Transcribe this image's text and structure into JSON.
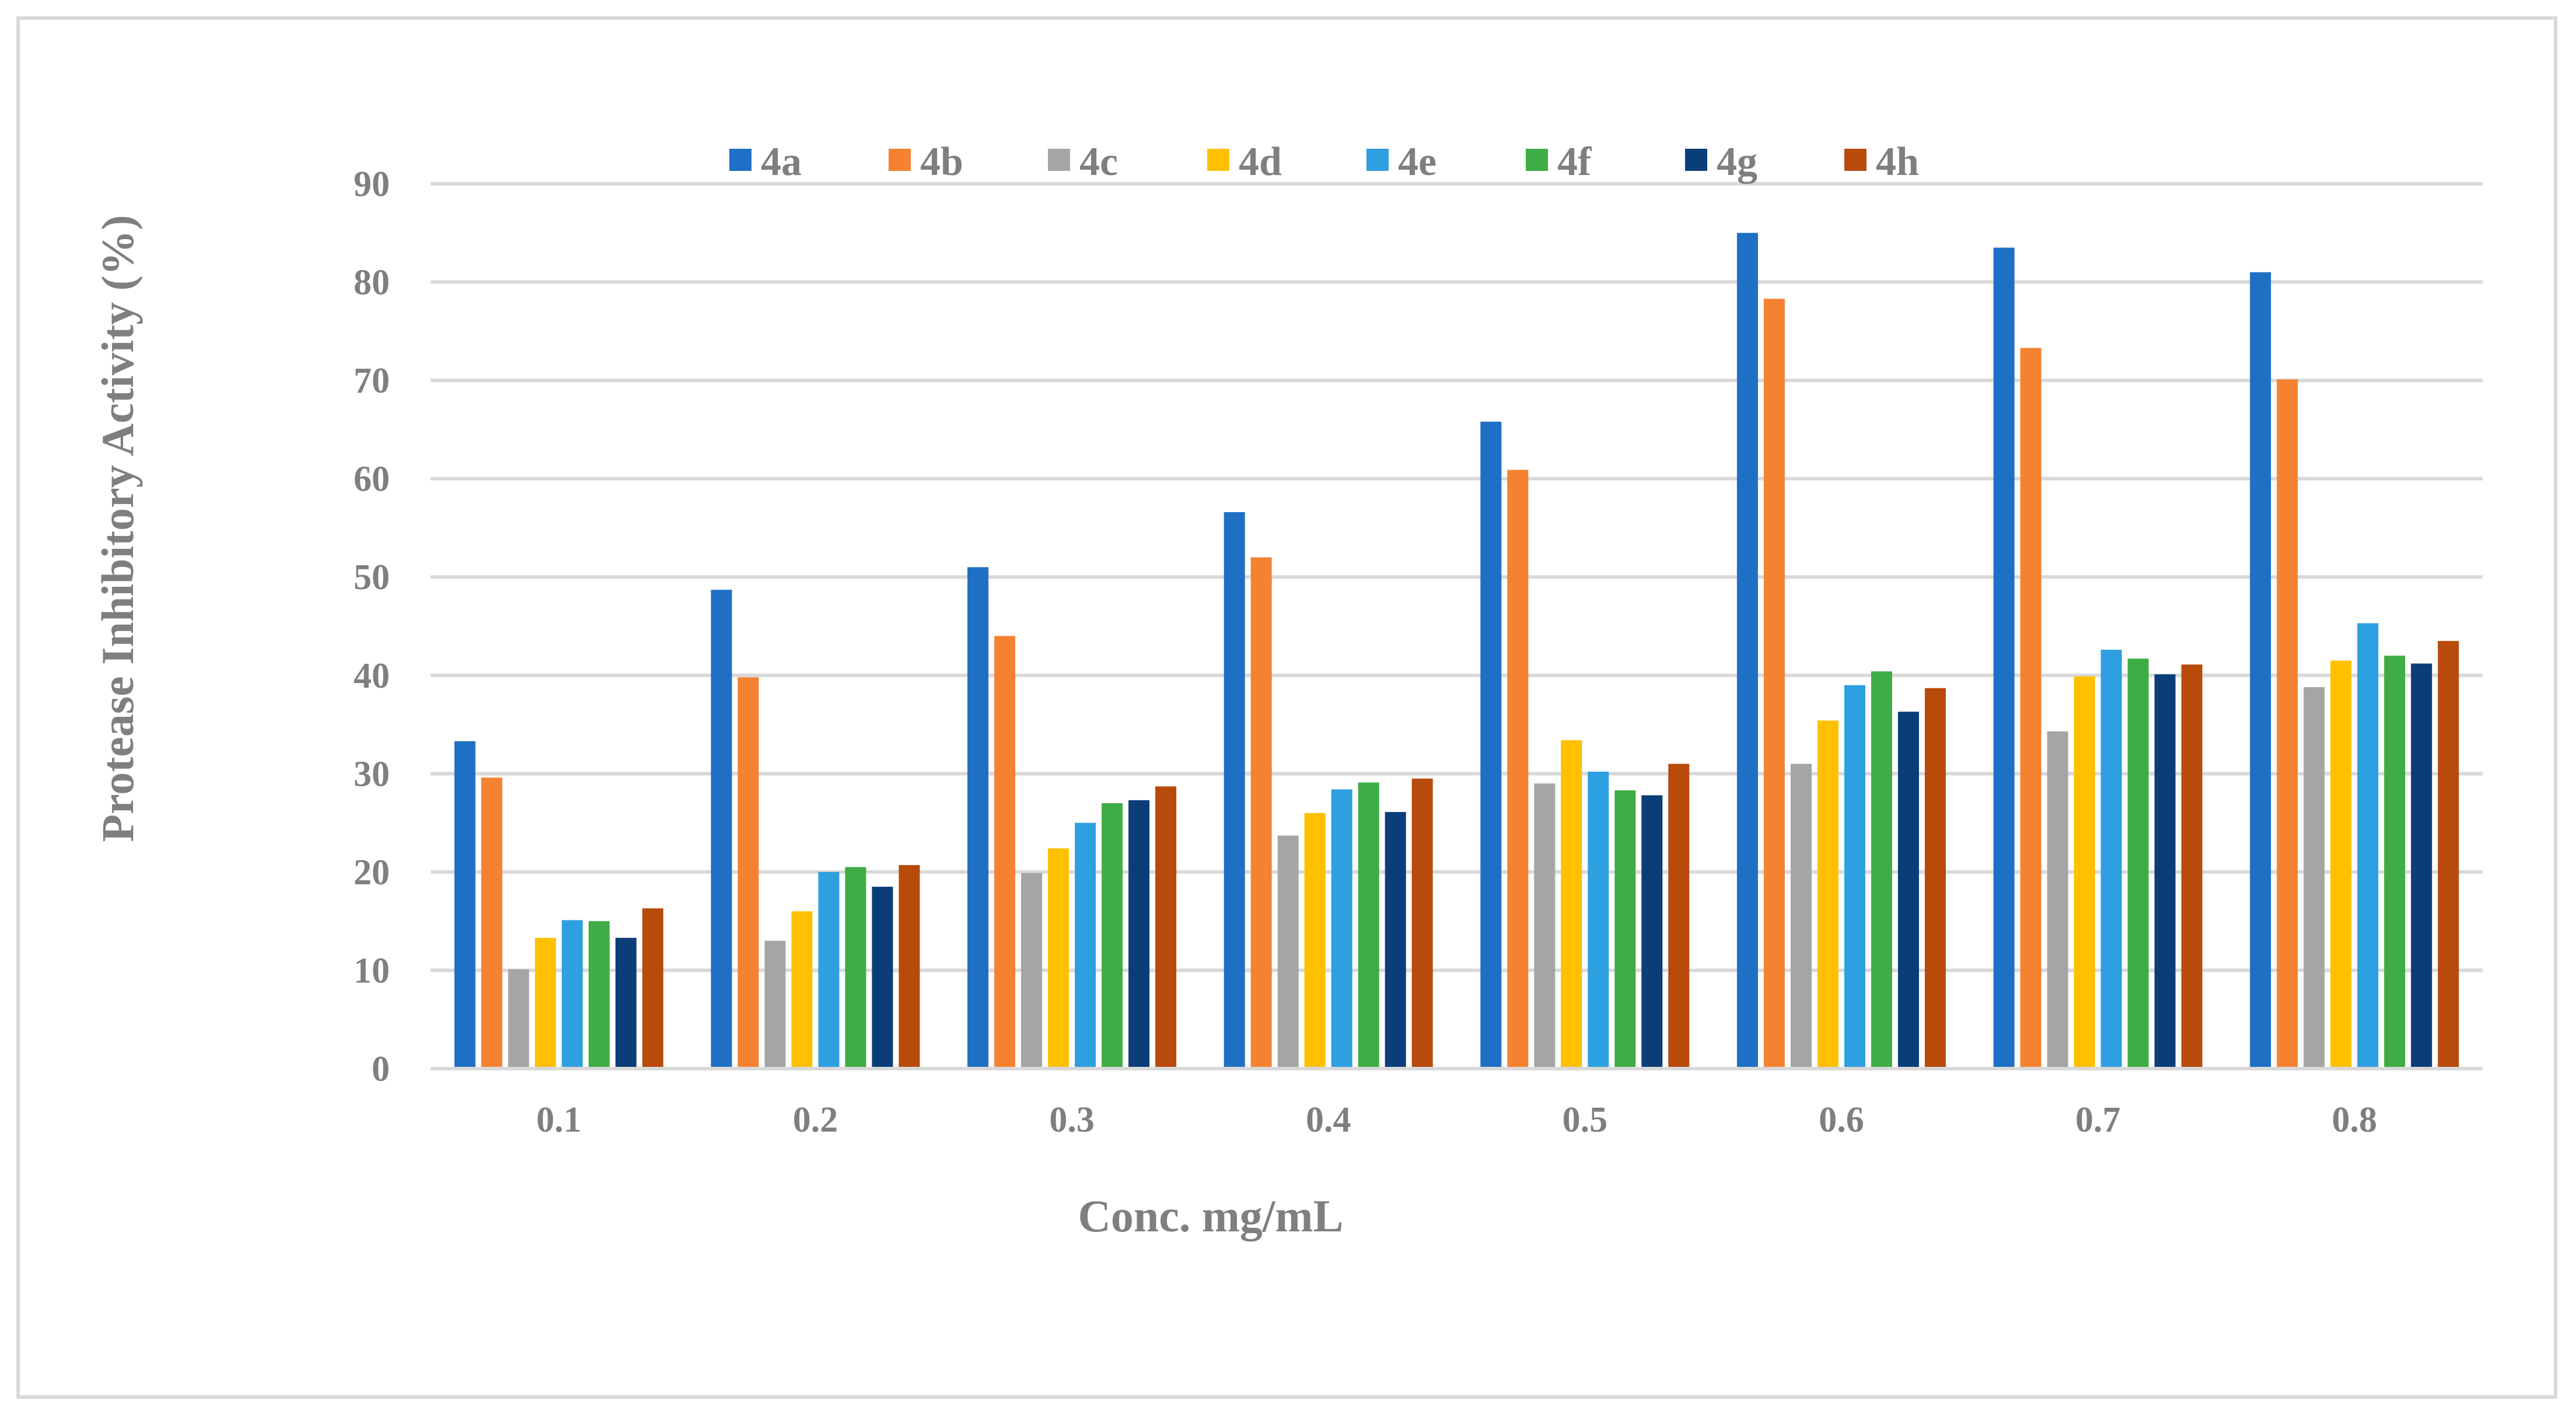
{
  "chart_data": {
    "type": "bar",
    "title": "",
    "xlabel": "Conc. mg/mL",
    "ylabel": "Protease Inhibitory Activity (%)",
    "ylim": [
      0,
      90
    ],
    "yticks": [
      0,
      10,
      20,
      30,
      40,
      50,
      60,
      70,
      80,
      90
    ],
    "grid": true,
    "legend_position": "top",
    "categories": [
      "0.1",
      "0.2",
      "0.3",
      "0.4",
      "0.5",
      "0.6",
      "0.7",
      "0.8"
    ],
    "series": [
      {
        "name": "4a",
        "color": "#1f6fc5",
        "values": [
          33.3,
          48.7,
          51.0,
          56.6,
          65.8,
          85.0,
          83.5,
          81.0
        ]
      },
      {
        "name": "4b",
        "color": "#f58231",
        "values": [
          29.6,
          39.8,
          44.0,
          52.0,
          60.9,
          78.3,
          73.3,
          70.1
        ]
      },
      {
        "name": "4c",
        "color": "#a5a5a5",
        "values": [
          10.1,
          13.0,
          19.9,
          23.7,
          29.0,
          31.0,
          34.3,
          38.8
        ]
      },
      {
        "name": "4d",
        "color": "#ffc000",
        "values": [
          13.3,
          16.0,
          22.4,
          26.0,
          33.4,
          35.4,
          39.9,
          41.5
        ]
      },
      {
        "name": "4e",
        "color": "#2e9fe0",
        "values": [
          15.1,
          20.0,
          25.0,
          28.4,
          30.2,
          39.0,
          42.6,
          45.3
        ]
      },
      {
        "name": "4f",
        "color": "#3fad46",
        "values": [
          15.0,
          20.5,
          27.0,
          29.1,
          28.3,
          40.4,
          41.7,
          42.0
        ]
      },
      {
        "name": "4g",
        "color": "#0b3d78",
        "values": [
          13.3,
          18.5,
          27.3,
          26.1,
          27.8,
          36.3,
          40.1,
          41.2
        ]
      },
      {
        "name": "4h",
        "color": "#b84a0c",
        "values": [
          16.3,
          20.7,
          28.7,
          29.5,
          31.0,
          38.7,
          41.1,
          43.5
        ]
      }
    ],
    "colors": {
      "grid": "#d9d9d9",
      "axis": "#d9d9d9",
      "text": "#7f7f7f",
      "border": "#d9d9d9"
    }
  }
}
